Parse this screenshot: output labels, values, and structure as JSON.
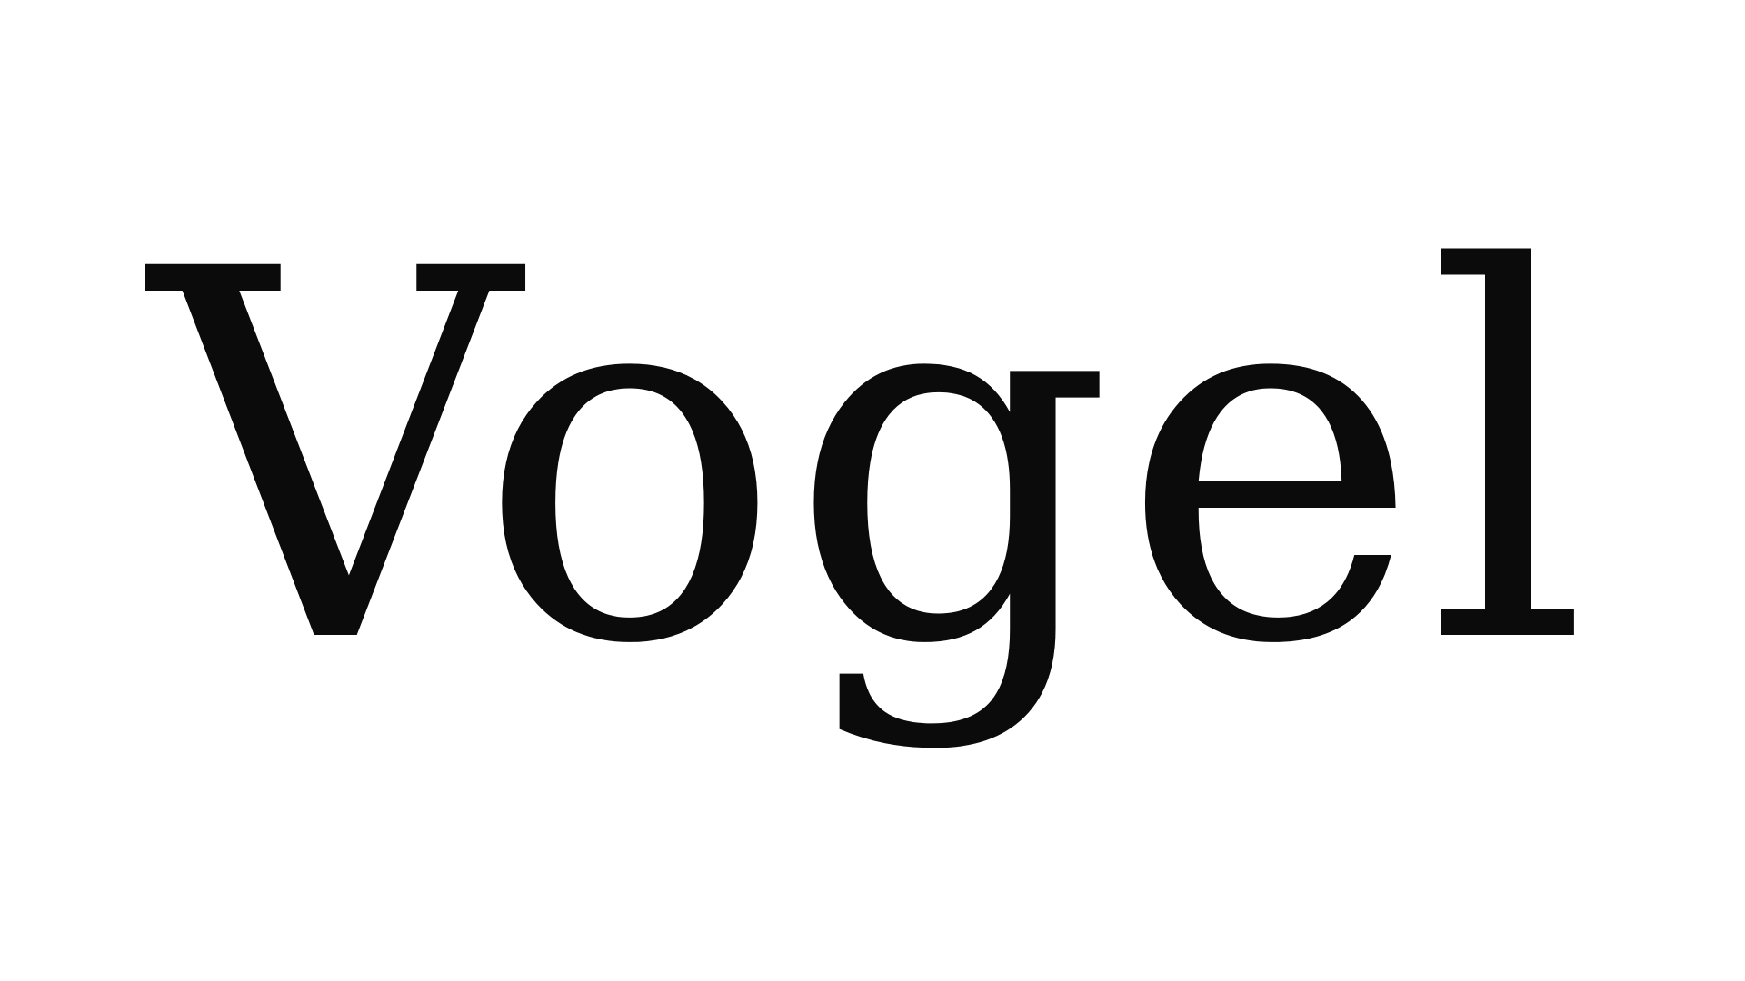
{
  "wordmark": {
    "text": "Vogel"
  },
  "colors": {
    "background": "#ffffff",
    "text": "#0b0b0b"
  }
}
